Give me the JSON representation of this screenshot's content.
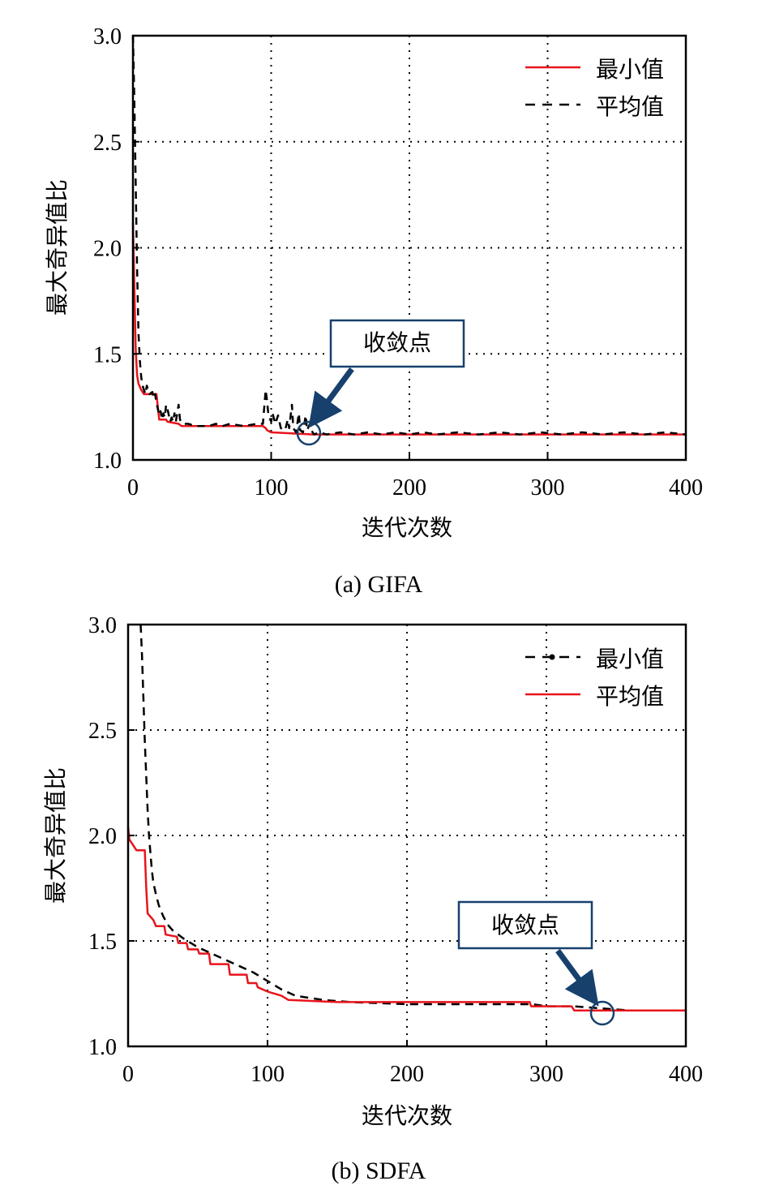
{
  "chart_data": [
    {
      "type": "line",
      "caption": "(a) GIFA",
      "xlabel": "迭代次数",
      "ylabel": "最大奇异值比",
      "xlim": [
        0,
        400
      ],
      "ylim": [
        1.0,
        3.0
      ],
      "x_ticks": [
        "0",
        "100",
        "200",
        "300",
        "400"
      ],
      "y_ticks": [
        "1.0",
        "1.5",
        "2.0",
        "2.5",
        "3.0"
      ],
      "grid": "dotted",
      "legend_position": "top-right",
      "callout": {
        "text": "收敛点",
        "x": 128,
        "y": 1.13
      },
      "series": [
        {
          "name": "最小值",
          "color": "#e8141c",
          "dash": "solid",
          "points": [
            [
              0,
              2.12
            ],
            [
              1,
              1.82
            ],
            [
              2,
              1.52
            ],
            [
              3,
              1.4
            ],
            [
              4,
              1.36
            ],
            [
              6,
              1.33
            ],
            [
              8,
              1.31
            ],
            [
              17,
              1.31
            ],
            [
              18,
              1.25
            ],
            [
              19,
              1.19
            ],
            [
              24,
              1.19
            ],
            [
              25,
              1.18
            ],
            [
              33,
              1.17
            ],
            [
              35,
              1.16
            ],
            [
              60,
              1.16
            ],
            [
              94,
              1.16
            ],
            [
              96,
              1.15
            ],
            [
              97,
              1.14
            ],
            [
              100,
              1.13
            ],
            [
              130,
              1.12
            ],
            [
              400,
              1.12
            ]
          ]
        },
        {
          "name": "平均值",
          "color": "#000000",
          "dash": "9,7",
          "points": [
            [
              0,
              3.0
            ],
            [
              1,
              2.7
            ],
            [
              2,
              2.3
            ],
            [
              3,
              1.9
            ],
            [
              4,
              1.6
            ],
            [
              5,
              1.47
            ],
            [
              6,
              1.39
            ],
            [
              7,
              1.35
            ],
            [
              8,
              1.33
            ],
            [
              9,
              1.31
            ],
            [
              10,
              1.35
            ],
            [
              11,
              1.33
            ],
            [
              12,
              1.31
            ],
            [
              14,
              1.32
            ],
            [
              15,
              1.29
            ],
            [
              16,
              1.31
            ],
            [
              17,
              1.27
            ],
            [
              18,
              1.24
            ],
            [
              19,
              1.21
            ],
            [
              20,
              1.23
            ],
            [
              21,
              1.19
            ],
            [
              22,
              1.22
            ],
            [
              23,
              1.2
            ],
            [
              24,
              1.26
            ],
            [
              25,
              1.24
            ],
            [
              26,
              1.21
            ],
            [
              27,
              1.18
            ],
            [
              28,
              1.2
            ],
            [
              29,
              1.18
            ],
            [
              30,
              1.22
            ],
            [
              31,
              1.18
            ],
            [
              33,
              1.26
            ],
            [
              34,
              1.19
            ],
            [
              36,
              1.17
            ],
            [
              40,
              1.17
            ],
            [
              45,
              1.16
            ],
            [
              55,
              1.16
            ],
            [
              60,
              1.17
            ],
            [
              65,
              1.16
            ],
            [
              70,
              1.17
            ],
            [
              80,
              1.16
            ],
            [
              90,
              1.17
            ],
            [
              94,
              1.17
            ],
            [
              95,
              1.25
            ],
            [
              96,
              1.33
            ],
            [
              97,
              1.28
            ],
            [
              98,
              1.21
            ],
            [
              100,
              1.18
            ],
            [
              101,
              1.22
            ],
            [
              103,
              1.17
            ],
            [
              105,
              1.21
            ],
            [
              107,
              1.15
            ],
            [
              110,
              1.14
            ],
            [
              112,
              1.19
            ],
            [
              113,
              1.15
            ],
            [
              115,
              1.26
            ],
            [
              116,
              1.15
            ],
            [
              118,
              1.13
            ],
            [
              120,
              1.22
            ],
            [
              121,
              1.14
            ],
            [
              123,
              1.13
            ],
            [
              125,
              1.21
            ],
            [
              126,
              1.14
            ],
            [
              128,
              1.17
            ],
            [
              129,
              1.14
            ],
            [
              131,
              1.12
            ],
            [
              135,
              1.13
            ],
            [
              140,
              1.12
            ],
            [
              150,
              1.13
            ],
            [
              160,
              1.12
            ],
            [
              170,
              1.13
            ],
            [
              180,
              1.12
            ],
            [
              190,
              1.13
            ],
            [
              200,
              1.12
            ],
            [
              210,
              1.13
            ],
            [
              220,
              1.12
            ],
            [
              235,
              1.13
            ],
            [
              250,
              1.12
            ],
            [
              265,
              1.13
            ],
            [
              280,
              1.12
            ],
            [
              295,
              1.13
            ],
            [
              310,
              1.12
            ],
            [
              325,
              1.13
            ],
            [
              340,
              1.12
            ],
            [
              355,
              1.13
            ],
            [
              370,
              1.12
            ],
            [
              385,
              1.13
            ],
            [
              400,
              1.12
            ]
          ]
        }
      ]
    },
    {
      "type": "line",
      "caption": "(b) SDFA",
      "xlabel": "迭代次数",
      "ylabel": "最大奇异值比",
      "xlim": [
        0,
        400
      ],
      "ylim": [
        1.0,
        3.0
      ],
      "x_ticks": [
        "0",
        "100",
        "200",
        "300",
        "400"
      ],
      "y_ticks": [
        "1.0",
        "1.5",
        "2.0",
        "2.5",
        "3.0"
      ],
      "grid": "dotted",
      "legend_position": "top-right",
      "callout": {
        "text": "收敛点",
        "x": 340,
        "y": 1.16
      },
      "series": [
        {
          "name": "最小值",
          "color": "#000000",
          "dash": "10,7",
          "marker": "dot",
          "points": [
            [
              9,
              3.0
            ],
            [
              10,
              2.85
            ],
            [
              11,
              2.65
            ],
            [
              12,
              2.45
            ],
            [
              13,
              2.28
            ],
            [
              14,
              2.12
            ],
            [
              15,
              2.0
            ],
            [
              16,
              1.92
            ],
            [
              17,
              1.84
            ],
            [
              18,
              1.78
            ],
            [
              20,
              1.72
            ],
            [
              22,
              1.67
            ],
            [
              25,
              1.62
            ],
            [
              28,
              1.58
            ],
            [
              32,
              1.55
            ],
            [
              36,
              1.53
            ],
            [
              40,
              1.51
            ],
            [
              45,
              1.49
            ],
            [
              50,
              1.47
            ],
            [
              60,
              1.44
            ],
            [
              70,
              1.41
            ],
            [
              80,
              1.38
            ],
            [
              90,
              1.35
            ],
            [
              100,
              1.31
            ],
            [
              110,
              1.27
            ],
            [
              120,
              1.24
            ],
            [
              130,
              1.23
            ],
            [
              140,
              1.22
            ],
            [
              160,
              1.21
            ],
            [
              200,
              1.2
            ],
            [
              260,
              1.2
            ],
            [
              290,
              1.2
            ],
            [
              300,
              1.19
            ],
            [
              320,
              1.19
            ],
            [
              340,
              1.18
            ],
            [
              360,
              1.17
            ],
            [
              400,
              1.17
            ]
          ]
        },
        {
          "name": "平均值",
          "color": "#e8141c",
          "dash": "solid",
          "points": [
            [
              0,
              2.04
            ],
            [
              1,
              1.98
            ],
            [
              4,
              1.95
            ],
            [
              6,
              1.93
            ],
            [
              12,
              1.93
            ],
            [
              13,
              1.75
            ],
            [
              14,
              1.63
            ],
            [
              18,
              1.6
            ],
            [
              20,
              1.57
            ],
            [
              26,
              1.57
            ],
            [
              27,
              1.53
            ],
            [
              35,
              1.52
            ],
            [
              36,
              1.49
            ],
            [
              42,
              1.49
            ],
            [
              43,
              1.46
            ],
            [
              50,
              1.46
            ],
            [
              51,
              1.44
            ],
            [
              58,
              1.44
            ],
            [
              59,
              1.39
            ],
            [
              72,
              1.39
            ],
            [
              73,
              1.34
            ],
            [
              85,
              1.34
            ],
            [
              86,
              1.3
            ],
            [
              92,
              1.3
            ],
            [
              93,
              1.28
            ],
            [
              100,
              1.26
            ],
            [
              110,
              1.24
            ],
            [
              115,
              1.22
            ],
            [
              150,
              1.21
            ],
            [
              200,
              1.21
            ],
            [
              260,
              1.21
            ],
            [
              288,
              1.21
            ],
            [
              289,
              1.19
            ],
            [
              318,
              1.19
            ],
            [
              320,
              1.17
            ],
            [
              400,
              1.17
            ]
          ]
        }
      ]
    }
  ]
}
